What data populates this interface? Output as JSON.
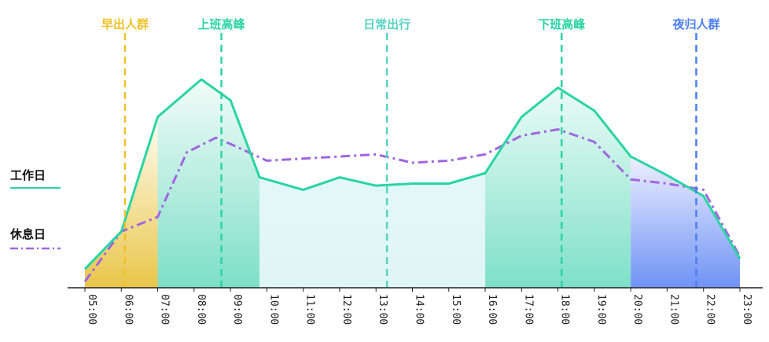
{
  "chart_data": {
    "type": "area",
    "x": [
      "05:00",
      "06:00",
      "07:00",
      "08:00",
      "09:00",
      "10:00",
      "11:00",
      "12:00",
      "13:00",
      "14:00",
      "15:00",
      "16:00",
      "17:00",
      "18:00",
      "19:00",
      "20:00",
      "21:00",
      "22:00",
      "23:00"
    ],
    "ylim": [
      0,
      100
    ],
    "grid": false,
    "legend_placement": "left",
    "series": [
      {
        "name": "工作日",
        "color": "#2ad4a4",
        "style": "solid",
        "points": [
          [
            5.0,
            9
          ],
          [
            6.0,
            27
          ],
          [
            7.0,
            82
          ],
          [
            8.2,
            100
          ],
          [
            9.0,
            90
          ],
          [
            9.8,
            53
          ],
          [
            11.0,
            47
          ],
          [
            12.0,
            53
          ],
          [
            13.0,
            49
          ],
          [
            14.0,
            50
          ],
          [
            15.0,
            50
          ],
          [
            16.0,
            55
          ],
          [
            17.0,
            82
          ],
          [
            18.0,
            96
          ],
          [
            19.0,
            85
          ],
          [
            20.0,
            63
          ],
          [
            21.0,
            54
          ],
          [
            22.0,
            44
          ],
          [
            23.0,
            14
          ]
        ]
      },
      {
        "name": "休息日",
        "color": "#a066e0",
        "style": "dash-dot",
        "points": [
          [
            5.0,
            3
          ],
          [
            6.0,
            27
          ],
          [
            7.0,
            34
          ],
          [
            7.8,
            65
          ],
          [
            8.6,
            72
          ],
          [
            9.0,
            69
          ],
          [
            10.0,
            61
          ],
          [
            11.0,
            62
          ],
          [
            12.0,
            63
          ],
          [
            13.0,
            64
          ],
          [
            14.0,
            60
          ],
          [
            15.0,
            61
          ],
          [
            16.0,
            64
          ],
          [
            17.0,
            73
          ],
          [
            18.0,
            76
          ],
          [
            19.0,
            70
          ],
          [
            20.0,
            52
          ],
          [
            21.0,
            50
          ],
          [
            22.0,
            47
          ],
          [
            23.0,
            15
          ]
        ]
      }
    ],
    "bands": [
      {
        "from": 5.0,
        "to": 7.0,
        "color_top": "#fffdf2",
        "color_bottom": "#e8c64a"
      },
      {
        "from": 7.0,
        "to": 9.8,
        "color_top": "#f2fcf8",
        "color_bottom": "#7ddfc7"
      },
      {
        "from": 9.8,
        "to": 16.0,
        "color_top": "#e3f7f8",
        "color_bottom": "#dff6f6"
      },
      {
        "from": 16.0,
        "to": 20.0,
        "color_top": "#eafbf6",
        "color_bottom": "#7ee0c8"
      },
      {
        "from": 20.0,
        "to": 23.0,
        "color_top": "#eef0ff",
        "color_bottom": "#6f92f4"
      }
    ],
    "annotations": [
      {
        "label": "早出人群",
        "x": 6.1,
        "color": "#f0c12a"
      },
      {
        "label": "上班高峰",
        "x": 8.75,
        "color": "#2ad4a4"
      },
      {
        "label": "日常出行",
        "x": 13.3,
        "color": "#56d4c2"
      },
      {
        "label": "下班高峰",
        "x": 18.1,
        "color": "#2ad4a4"
      },
      {
        "label": "夜归人群",
        "x": 21.8,
        "color": "#4c7ef0"
      }
    ]
  }
}
